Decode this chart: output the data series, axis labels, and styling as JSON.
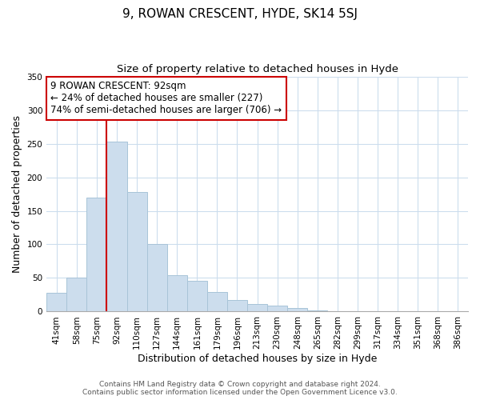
{
  "title": "9, ROWAN CRESCENT, HYDE, SK14 5SJ",
  "subtitle": "Size of property relative to detached houses in Hyde",
  "xlabel": "Distribution of detached houses by size in Hyde",
  "ylabel": "Number of detached properties",
  "bar_labels": [
    "41sqm",
    "58sqm",
    "75sqm",
    "92sqm",
    "110sqm",
    "127sqm",
    "144sqm",
    "161sqm",
    "179sqm",
    "196sqm",
    "213sqm",
    "230sqm",
    "248sqm",
    "265sqm",
    "282sqm",
    "299sqm",
    "317sqm",
    "334sqm",
    "351sqm",
    "368sqm",
    "386sqm"
  ],
  "bar_values": [
    28,
    50,
    170,
    253,
    178,
    101,
    54,
    46,
    29,
    17,
    11,
    9,
    5,
    2,
    0,
    0,
    1,
    0,
    0,
    0,
    0
  ],
  "bar_color": "#ccdded",
  "bar_edge_color": "#a8c4d8",
  "vline_color": "#cc0000",
  "annotation_text": "9 ROWAN CRESCENT: 92sqm\n← 24% of detached houses are smaller (227)\n74% of semi-detached houses are larger (706) →",
  "annotation_box_color": "#ffffff",
  "annotation_box_edge": "#cc0000",
  "ylim": [
    0,
    350
  ],
  "yticks": [
    0,
    50,
    100,
    150,
    200,
    250,
    300,
    350
  ],
  "footer_line1": "Contains HM Land Registry data © Crown copyright and database right 2024.",
  "footer_line2": "Contains public sector information licensed under the Open Government Licence v3.0.",
  "title_fontsize": 11,
  "subtitle_fontsize": 9.5,
  "label_fontsize": 9,
  "tick_fontsize": 7.5,
  "annotation_fontsize": 8.5,
  "footer_fontsize": 6.5,
  "grid_color": "#ccdded"
}
